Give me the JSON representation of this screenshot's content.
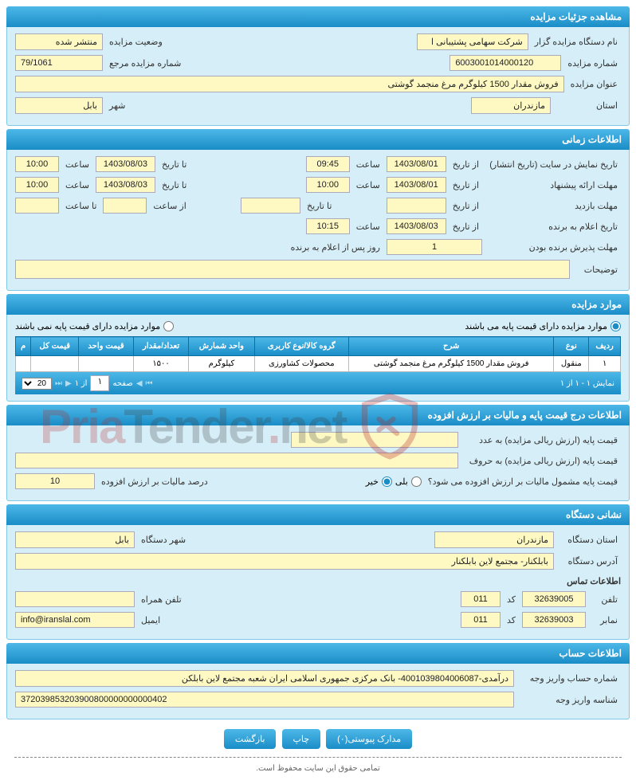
{
  "header_details": "مشاهده جزئیات مزایده",
  "details": {
    "org_label": "نام دستگاه مزایده گزار",
    "org": "شرکت سهامی پشتیبانی ا",
    "status_label": "وضعیت مزایده",
    "status": "منتشر شده",
    "number_label": "شماره مزایده",
    "number": "6003001014000120",
    "ref_label": "شماره مزایده مرجع",
    "ref": "79/1061",
    "title_label": "عنوان مزایده",
    "title": "فروش مقدار 1500 کیلوگرم مرغ منجمد گوشتی",
    "province_label": "استان",
    "province": "مازندران",
    "city_label": "شهر",
    "city": "بابل"
  },
  "header_time": "اطلاعات زمانی",
  "time": {
    "pub_label": "تاریخ نمایش در سایت (تاریخ انتشار)",
    "from_label": "از تاریخ",
    "to_label": "تا تاریخ",
    "hour_label": "ساعت",
    "hour_from_label": "از ساعت",
    "hour_to_label": "تا ساعت",
    "pub_from": "1403/08/01",
    "pub_from_h": "09:45",
    "pub_to": "1403/08/03",
    "pub_to_h": "10:00",
    "offer_label": "مهلت ارائه پیشنهاد",
    "offer_from": "1403/08/01",
    "offer_from_h": "10:00",
    "offer_to": "1403/08/03",
    "offer_to_h": "10:00",
    "visit_label": "مهلت بازدید",
    "visit_from": "",
    "visit_to": "",
    "visit_from_h": "",
    "visit_to_h": "",
    "winner_label": "تاریخ اعلام به برنده",
    "winner_date": "1403/08/03",
    "winner_h": "10:15",
    "accept_label": "مهلت پذیرش برنده بودن",
    "accept_val": "1",
    "accept_unit": "روز پس از اعلام به برنده",
    "notes_label": "توضیحات",
    "notes": ""
  },
  "header_items": "موارد مزایده",
  "items": {
    "radio_has_base": "موارد مزایده دارای قیمت پایه می باشند",
    "radio_no_base": "موارد مزایده دارای قیمت پایه نمی باشند",
    "columns": [
      "ردیف",
      "نوع",
      "شرح",
      "گروه کالا/نوع کاربری",
      "واحد شمارش",
      "تعداد/مقدار",
      "قیمت واحد",
      "قیمت کل",
      "م"
    ],
    "rows": [
      [
        "۱",
        "منقول",
        "فروش مقدار 1500 کیلوگرم مرغ منجمد گوشتی",
        "محصولات کشاورزی",
        "کیلوگرم",
        "۱۵۰۰",
        "",
        "",
        ""
      ]
    ],
    "pager_right": "نمایش ۱ - ۱ از ۱",
    "pager_page_label": "صفحه",
    "pager_page": "۱",
    "pager_of": "از ۱",
    "pager_size": "20"
  },
  "header_price": "اطلاعات درج قیمت پایه و مالیات بر ارزش افزوده",
  "price": {
    "num_label": "قیمت پایه (ارزش ریالی مزایده) به عدد",
    "num_val": "",
    "word_label": "قیمت پایه (ارزش ریالی مزایده) به حروف",
    "word_val": "",
    "vat_q": "قیمت پایه مشمول مالیات بر ارزش افزوده می شود؟",
    "yes": "بلی",
    "no": "خیر",
    "vat_rate_label": "درصد مالیات بر ارزش افزوده",
    "vat_rate": "10"
  },
  "header_addr": "نشانی دستگاه",
  "addr": {
    "province_label": "استان دستگاه",
    "province": "مازندران",
    "city_label": "شهر دستگاه",
    "city": "بابل",
    "address_label": "آدرس دستگاه",
    "address": "بابلکنار- مجتمع لاین بابلکنار",
    "contact_heading": "اطلاعات تماس",
    "phone_label": "تلفن",
    "phone": "32639005",
    "code_label": "کد",
    "phone_code": "011",
    "mobile_label": "تلفن همراه",
    "mobile": "",
    "fax_label": "نمابر",
    "fax": "32639003",
    "fax_code": "011",
    "email_label": "ایمیل",
    "email": "info@iranslal.com"
  },
  "header_account": "اطلاعات حساب",
  "account": {
    "acct_no_label": "شماره حساب واریز وجه",
    "acct_no": "درآمدی-4001039804006087- بانک مرکزی جمهوری اسلامی ایران شعبه مجتمع لاین بابلکن",
    "acct_id_label": "شناسه واریز وجه",
    "acct_id": "372039853203900800000000000402"
  },
  "buttons": {
    "attach": "مدارک پیوستی(۰)",
    "print": "چاپ",
    "back": "بازگشت"
  },
  "footer": "تمامی حقوق این سایت محفوظ است.",
  "watermark": {
    "a": "Pria",
    "b": "Tender",
    "c": "net"
  }
}
